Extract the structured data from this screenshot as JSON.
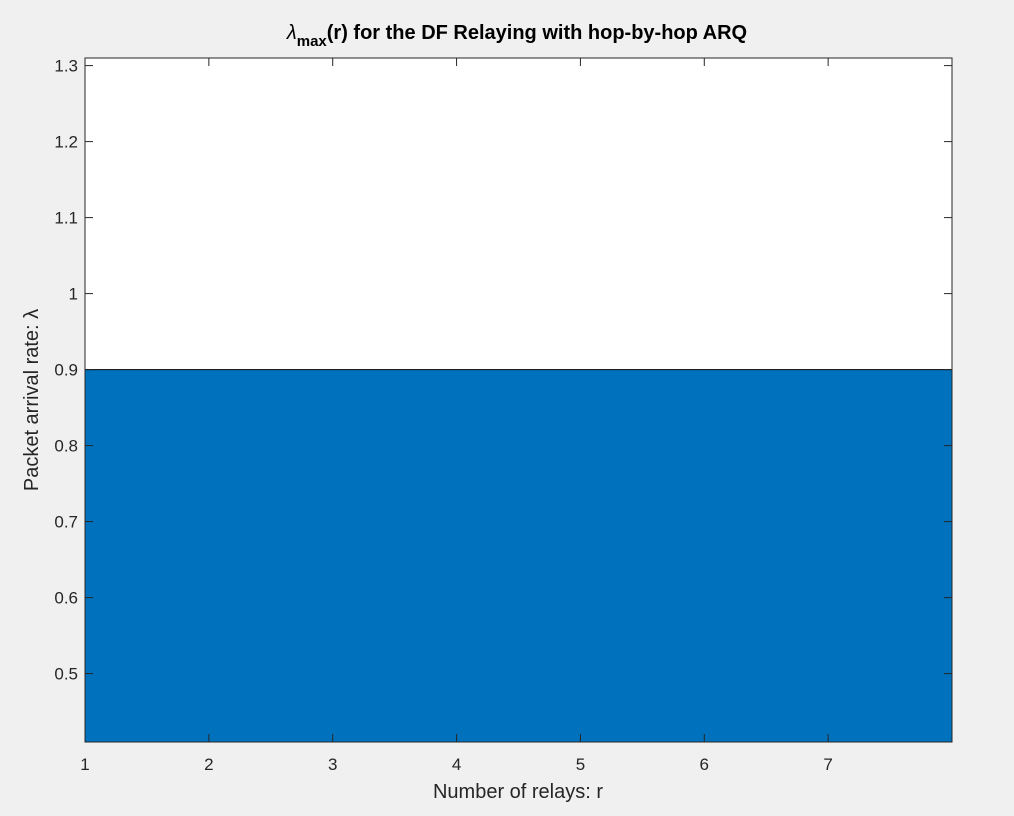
{
  "chart_data": {
    "type": "area",
    "title": {
      "symbol": "λ",
      "subscript": "max",
      "rest": "(r) for the DF Relaying with hop-by-hop ARQ"
    },
    "xlabel": "Number of relays: r",
    "ylabel": "Packet arrival rate: λ",
    "xlim": [
      1,
      8
    ],
    "ylim": [
      0.41,
      1.31
    ],
    "x_ticks": [
      1,
      2,
      3,
      4,
      5,
      6,
      7
    ],
    "x_tick_labels": [
      "1",
      "2",
      "3",
      "4",
      "5",
      "6",
      "7"
    ],
    "y_ticks": [
      0.5,
      0.6,
      0.7,
      0.8,
      0.9,
      1.0,
      1.1,
      1.2,
      1.3
    ],
    "y_tick_labels": [
      "0.5",
      "0.6",
      "0.7",
      "0.8",
      "0.9",
      "1",
      "1.1",
      "1.2",
      "1.3"
    ],
    "series": [
      {
        "x": [
          1,
          2,
          3,
          4,
          5,
          6,
          7,
          8
        ],
        "y": [
          0.9,
          0.9,
          0.9,
          0.9,
          0.9,
          0.9,
          0.9,
          0.9
        ],
        "color": "#0072BD"
      }
    ],
    "grid": false,
    "background": "#ffffff",
    "figure_background": "#f0f0f0"
  }
}
